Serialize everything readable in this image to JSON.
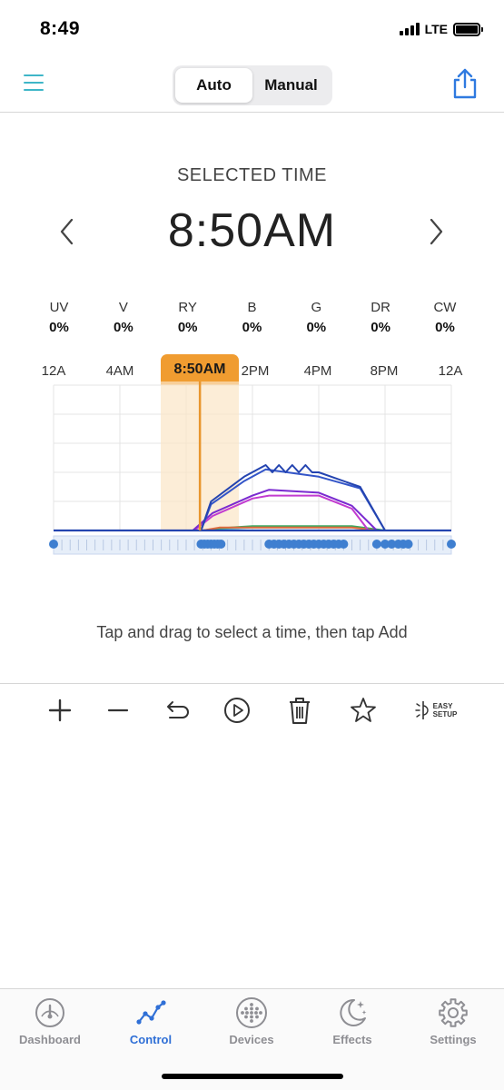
{
  "status_bar": {
    "time": "8:49",
    "network": "LTE"
  },
  "header": {
    "segments": [
      {
        "label": "Auto",
        "active": true
      },
      {
        "label": "Manual",
        "active": false
      }
    ]
  },
  "selected_time": {
    "label": "SELECTED TIME",
    "value": "8:50AM"
  },
  "channels": [
    {
      "name": "UV",
      "value": "0%"
    },
    {
      "name": "V",
      "value": "0%"
    },
    {
      "name": "RY",
      "value": "0%"
    },
    {
      "name": "B",
      "value": "0%"
    },
    {
      "name": "G",
      "value": "0%"
    },
    {
      "name": "DR",
      "value": "0%"
    },
    {
      "name": "CW",
      "value": "0%"
    }
  ],
  "timeline": {
    "hour_labels": [
      "12A",
      "4AM",
      "2PM",
      "4PM",
      "8PM",
      "12A"
    ],
    "selected_badge": "8:50AM"
  },
  "chart_data": {
    "type": "line",
    "x_unit": "hour of day",
    "xlim": [
      0,
      24
    ],
    "ylim": [
      0,
      100
    ],
    "selected_x": 8.83,
    "series": [
      {
        "color": "#2444b0",
        "x": [
          0,
          8.9,
          9.5,
          11.5,
          12.8,
          13.2,
          13.6,
          14.0,
          14.4,
          14.8,
          15.2,
          15.6,
          16.0,
          18.5,
          20.0,
          24
        ],
        "y": [
          0,
          0,
          20,
          37,
          45,
          40,
          45,
          40,
          45,
          40,
          45,
          40,
          40,
          30,
          0,
          0
        ]
      },
      {
        "color": "#3355c8",
        "x": [
          0,
          8.9,
          9.5,
          11.5,
          12.8,
          16.0,
          18.5,
          20.0,
          24
        ],
        "y": [
          0,
          0,
          18,
          34,
          42,
          37,
          29,
          0,
          0
        ]
      },
      {
        "color": "#7a2bd0",
        "x": [
          0,
          8.4,
          9.6,
          12.0,
          13.0,
          16.0,
          18.0,
          19.5,
          24
        ],
        "y": [
          0,
          0,
          12,
          24,
          28,
          26,
          17,
          0,
          0
        ]
      },
      {
        "color": "#c23bd0",
        "x": [
          0,
          8.5,
          9.6,
          12.0,
          13.0,
          16.0,
          18.0,
          19.0,
          24
        ],
        "y": [
          0,
          0,
          10,
          22,
          24,
          24,
          15,
          0,
          0
        ]
      },
      {
        "color": "#e06a3c",
        "x": [
          0,
          9.0,
          10.0,
          18.0,
          19.5,
          24
        ],
        "y": [
          0,
          0,
          2,
          2,
          0,
          0
        ]
      },
      {
        "color": "#3aa860",
        "x": [
          0,
          9.0,
          10.0,
          12.0,
          18.0,
          20.0,
          24
        ],
        "y": [
          0,
          0,
          1.5,
          3,
          3,
          0,
          0
        ]
      },
      {
        "color": "#59b7c9",
        "x": [
          0,
          9.0,
          10.0,
          12.0,
          18.0,
          20.0,
          24
        ],
        "y": [
          0,
          0,
          1,
          2,
          2,
          0,
          0
        ]
      }
    ],
    "keyframes_x": [
      0,
      8.9,
      9.1,
      9.3,
      9.5,
      9.7,
      9.9,
      10.1,
      13.0,
      13.3,
      13.6,
      13.9,
      14.2,
      14.5,
      14.8,
      15.1,
      15.4,
      15.7,
      16.0,
      16.3,
      16.6,
      16.9,
      17.2,
      17.5,
      19.5,
      20.0,
      20.4,
      20.8,
      21.1,
      21.4,
      24
    ]
  },
  "hint": "Tap and drag to select a time, then tap Add",
  "toolbar": {
    "easy_setup_line1": "EASY",
    "easy_setup_line2": "SETUP"
  },
  "tabs": [
    {
      "label": "Dashboard",
      "icon": "gauge-icon",
      "active": false
    },
    {
      "label": "Control",
      "icon": "line-chart-icon",
      "active": true
    },
    {
      "label": "Devices",
      "icon": "dots-grid-icon",
      "active": false
    },
    {
      "label": "Effects",
      "icon": "moon-stars-icon",
      "active": false
    },
    {
      "label": "Settings",
      "icon": "gear-icon",
      "active": false
    }
  ],
  "colors": {
    "accent": "#2f6fd6",
    "selection": "#f09c30",
    "menu": "#3fb6c8"
  }
}
